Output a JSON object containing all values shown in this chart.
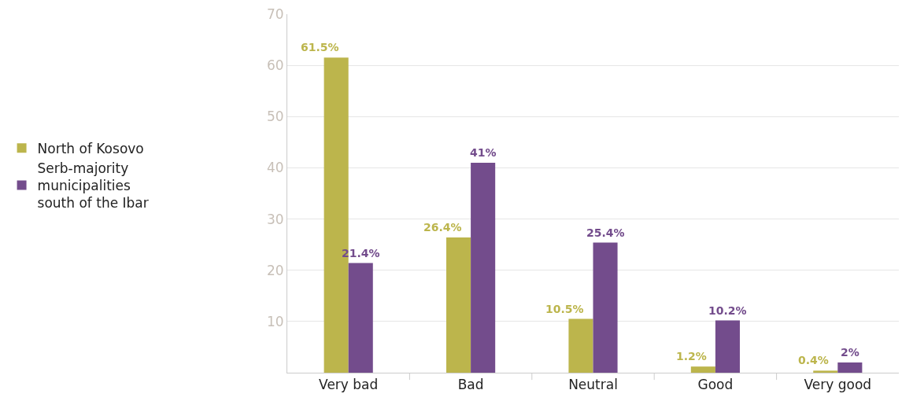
{
  "chart_data": {
    "type": "bar",
    "categories": [
      "Very bad",
      "Bad",
      "Neutral",
      "Good",
      "Very good"
    ],
    "series": [
      {
        "name": "North of Kosovo",
        "color": "#bcb54c",
        "values": [
          61.5,
          26.4,
          10.5,
          1.2,
          0.4
        ],
        "value_labels": [
          "61.5%",
          "26.4%",
          "10.5%",
          "1.2%",
          "0.4%"
        ]
      },
      {
        "name": "Serb-majority municipalities south of the Ibar",
        "color": "#734c8c",
        "values": [
          21.4,
          41,
          25.4,
          10.2,
          2
        ],
        "value_labels": [
          "21.4%",
          "41%",
          "25.4%",
          "10.2%",
          "2%"
        ]
      }
    ],
    "ylim": [
      0,
      70
    ],
    "yticks": [
      {
        "value": 0,
        "label": null
      },
      10,
      20,
      30,
      40,
      50,
      60,
      70
    ],
    "grid": "y",
    "legend": "left"
  }
}
